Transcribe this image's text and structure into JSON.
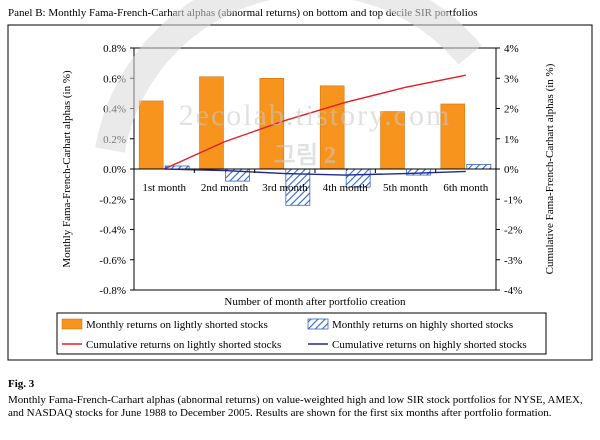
{
  "panel_title": "Panel B: Monthly Fama-French-Carhart alphas (abnormal returns) on bottom and top decile SIR portfolios",
  "figure": {
    "label": "Fig. 3",
    "caption": "Monthly Fama-French-Carhart alphas (abnormal returns) on value-weighted high and low SIR stock portfolios for NYSE, AMEX, and NASDAQ stocks for June 1988 to December 2005. Results are shown for the first six months after portfolio formation."
  },
  "watermark": {
    "text": "2ecolab.tistory.com",
    "korean": "그림 2"
  },
  "colors": {
    "light_bar": "#f7941d",
    "heavy_bar": "#3366cc",
    "light_line": "#e31e24",
    "heavy_line": "#1f2a8c",
    "axis": "#000000"
  },
  "chart_data": {
    "type": "bar",
    "categories": [
      "1st month",
      "2nd month",
      "3rd month",
      "4th month",
      "5th month",
      "6th month"
    ],
    "xlabel": "Number of month after portfolio creation",
    "ylabel_left": "Monthly Fama-French-Carhart alphas (in %)",
    "ylabel_right": "Cumulative Fama-French-Carhart alphas (in %)",
    "ylim_left": [
      -0.8,
      0.8
    ],
    "ylim_right": [
      -4,
      4
    ],
    "yticks_left": [
      "0.8%",
      "0.6%",
      "0.4%",
      "0.2%",
      "0.0%",
      "-0.2%",
      "-0.4%",
      "-0.6%",
      "-0.8%"
    ],
    "yticks_right": [
      "4%",
      "3%",
      "2%",
      "1%",
      "0%",
      "-1%",
      "-2%",
      "-3%",
      "-4%"
    ],
    "series": [
      {
        "name": "Monthly returns on lightly shorted stocks",
        "type": "bar",
        "axis": "left",
        "values": [
          0.45,
          0.61,
          0.6,
          0.55,
          0.38,
          0.43
        ]
      },
      {
        "name": "Monthly returns on highly shorted stocks",
        "type": "bar",
        "axis": "left",
        "values": [
          0.02,
          -0.08,
          -0.24,
          -0.12,
          -0.04,
          0.03
        ]
      },
      {
        "name": "Cumulative returns on lightly shorted stocks",
        "type": "line",
        "axis": "right",
        "values": [
          0.0,
          0.9,
          1.6,
          2.2,
          2.7,
          3.1
        ]
      },
      {
        "name": "Cumulative returns on highly shorted stocks",
        "type": "line",
        "axis": "right",
        "values": [
          0.0,
          -0.05,
          -0.15,
          -0.2,
          -0.15,
          -0.08
        ]
      }
    ],
    "grid": false,
    "legend": "bottom"
  }
}
